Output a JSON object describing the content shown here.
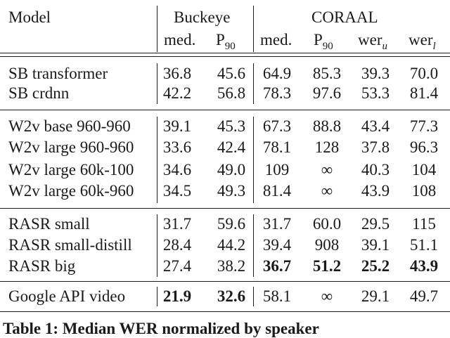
{
  "table": {
    "header": {
      "model": "Model",
      "group1": "Buckeye",
      "group2": "CORAAL",
      "cols": [
        {
          "text": "med.",
          "sub": ""
        },
        {
          "text": "P",
          "sub": "90"
        },
        {
          "text": "med.",
          "sub": ""
        },
        {
          "text": "P",
          "sub": "90"
        },
        {
          "text": "wer",
          "sub": "u"
        },
        {
          "text": "wer",
          "sub": "l"
        }
      ]
    },
    "rows": [
      {
        "model": "SB transformer",
        "vals": [
          "36.8",
          "45.6",
          "64.9",
          "85.3",
          "39.3",
          "70.0"
        ],
        "bold": [
          false,
          false,
          false,
          false,
          false,
          false
        ]
      },
      {
        "model": "SB crdnn",
        "vals": [
          "42.2",
          "56.8",
          "78.3",
          "97.6",
          "53.3",
          "81.4"
        ],
        "bold": [
          false,
          false,
          false,
          false,
          false,
          false
        ]
      },
      {
        "model": "W2v base 960-960",
        "vals": [
          "39.1",
          "45.3",
          "67.3",
          "88.8",
          "43.4",
          "77.3"
        ],
        "bold": [
          false,
          false,
          false,
          false,
          false,
          false
        ]
      },
      {
        "model": "W2v large 960-960",
        "vals": [
          "33.6",
          "42.4",
          "78.1",
          "128",
          "37.8",
          "96.3"
        ],
        "bold": [
          false,
          false,
          false,
          false,
          false,
          false
        ]
      },
      {
        "model": "W2v large 60k-100",
        "vals": [
          "34.6",
          "49.0",
          "109",
          "∞",
          "40.3",
          "104"
        ],
        "bold": [
          false,
          false,
          false,
          false,
          false,
          false
        ]
      },
      {
        "model": "W2v large 60k-960",
        "vals": [
          "34.5",
          "49.3",
          "81.4",
          "∞",
          "43.9",
          "108"
        ],
        "bold": [
          false,
          false,
          false,
          false,
          false,
          false
        ]
      },
      {
        "model": "RASR small",
        "vals": [
          "31.7",
          "59.6",
          "31.7",
          "60.0",
          "29.5",
          "115"
        ],
        "bold": [
          false,
          false,
          false,
          false,
          false,
          false
        ]
      },
      {
        "model": "RASR small-distill",
        "vals": [
          "28.4",
          "44.2",
          "39.4",
          "908",
          "39.1",
          "51.1"
        ],
        "bold": [
          false,
          false,
          false,
          false,
          false,
          false
        ]
      },
      {
        "model": "RASR big",
        "vals": [
          "27.4",
          "38.2",
          "36.7",
          "51.2",
          "25.2",
          "43.9"
        ],
        "bold": [
          false,
          false,
          true,
          true,
          true,
          true
        ]
      },
      {
        "model": "Google API video",
        "vals": [
          "21.9",
          "32.6",
          "58.1",
          "∞",
          "29.1",
          "49.7"
        ],
        "bold": [
          true,
          true,
          false,
          false,
          false,
          false
        ]
      }
    ]
  },
  "caption": "Table 1: Median WER normalized by speaker"
}
